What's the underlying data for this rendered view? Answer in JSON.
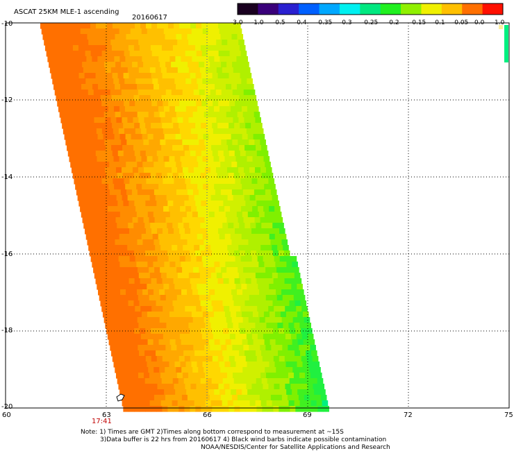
{
  "header": {
    "title": "ASCAT 25KM MLE-1 ascending",
    "date": "20160617"
  },
  "colorbar": {
    "labels": [
      "-3.0",
      "-1.0",
      "-0.5",
      "-0.4",
      "-0.35",
      "-0.3",
      "-0.25",
      "-0.2",
      "-0.15",
      "-0.1",
      "-0.05",
      "0.0",
      "1.0"
    ],
    "colors": [
      "#1a0020",
      "#3a007a",
      "#2a20d0",
      "#0060ff",
      "#00a8ff",
      "#00f0f0",
      "#00e880",
      "#20f020",
      "#90f000",
      "#f0f000",
      "#ffc000",
      "#ff7000",
      "#ff1000"
    ]
  },
  "map": {
    "lon_ticks": [
      "60",
      "63",
      "66",
      "69",
      "72",
      "75"
    ],
    "lat_ticks": [
      "-10",
      "-12",
      "-14",
      "-16",
      "-18",
      "-20"
    ],
    "lon_range": [
      60,
      75
    ],
    "lat_range": [
      -20,
      -10
    ],
    "grid": true,
    "time_label": "17:41",
    "time_label_color": "#c00000"
  },
  "notes": {
    "line1": "Note: 1) Times are GMT 2)Times along bottom correspond to measurement at ~15S",
    "line2": "3)Data buffer is 22 hrs from 20160617 4) Black wind barbs indicate possible contamination",
    "line3": "NOAA/NESDIS/Center for Satellite Applications and Research"
  }
}
